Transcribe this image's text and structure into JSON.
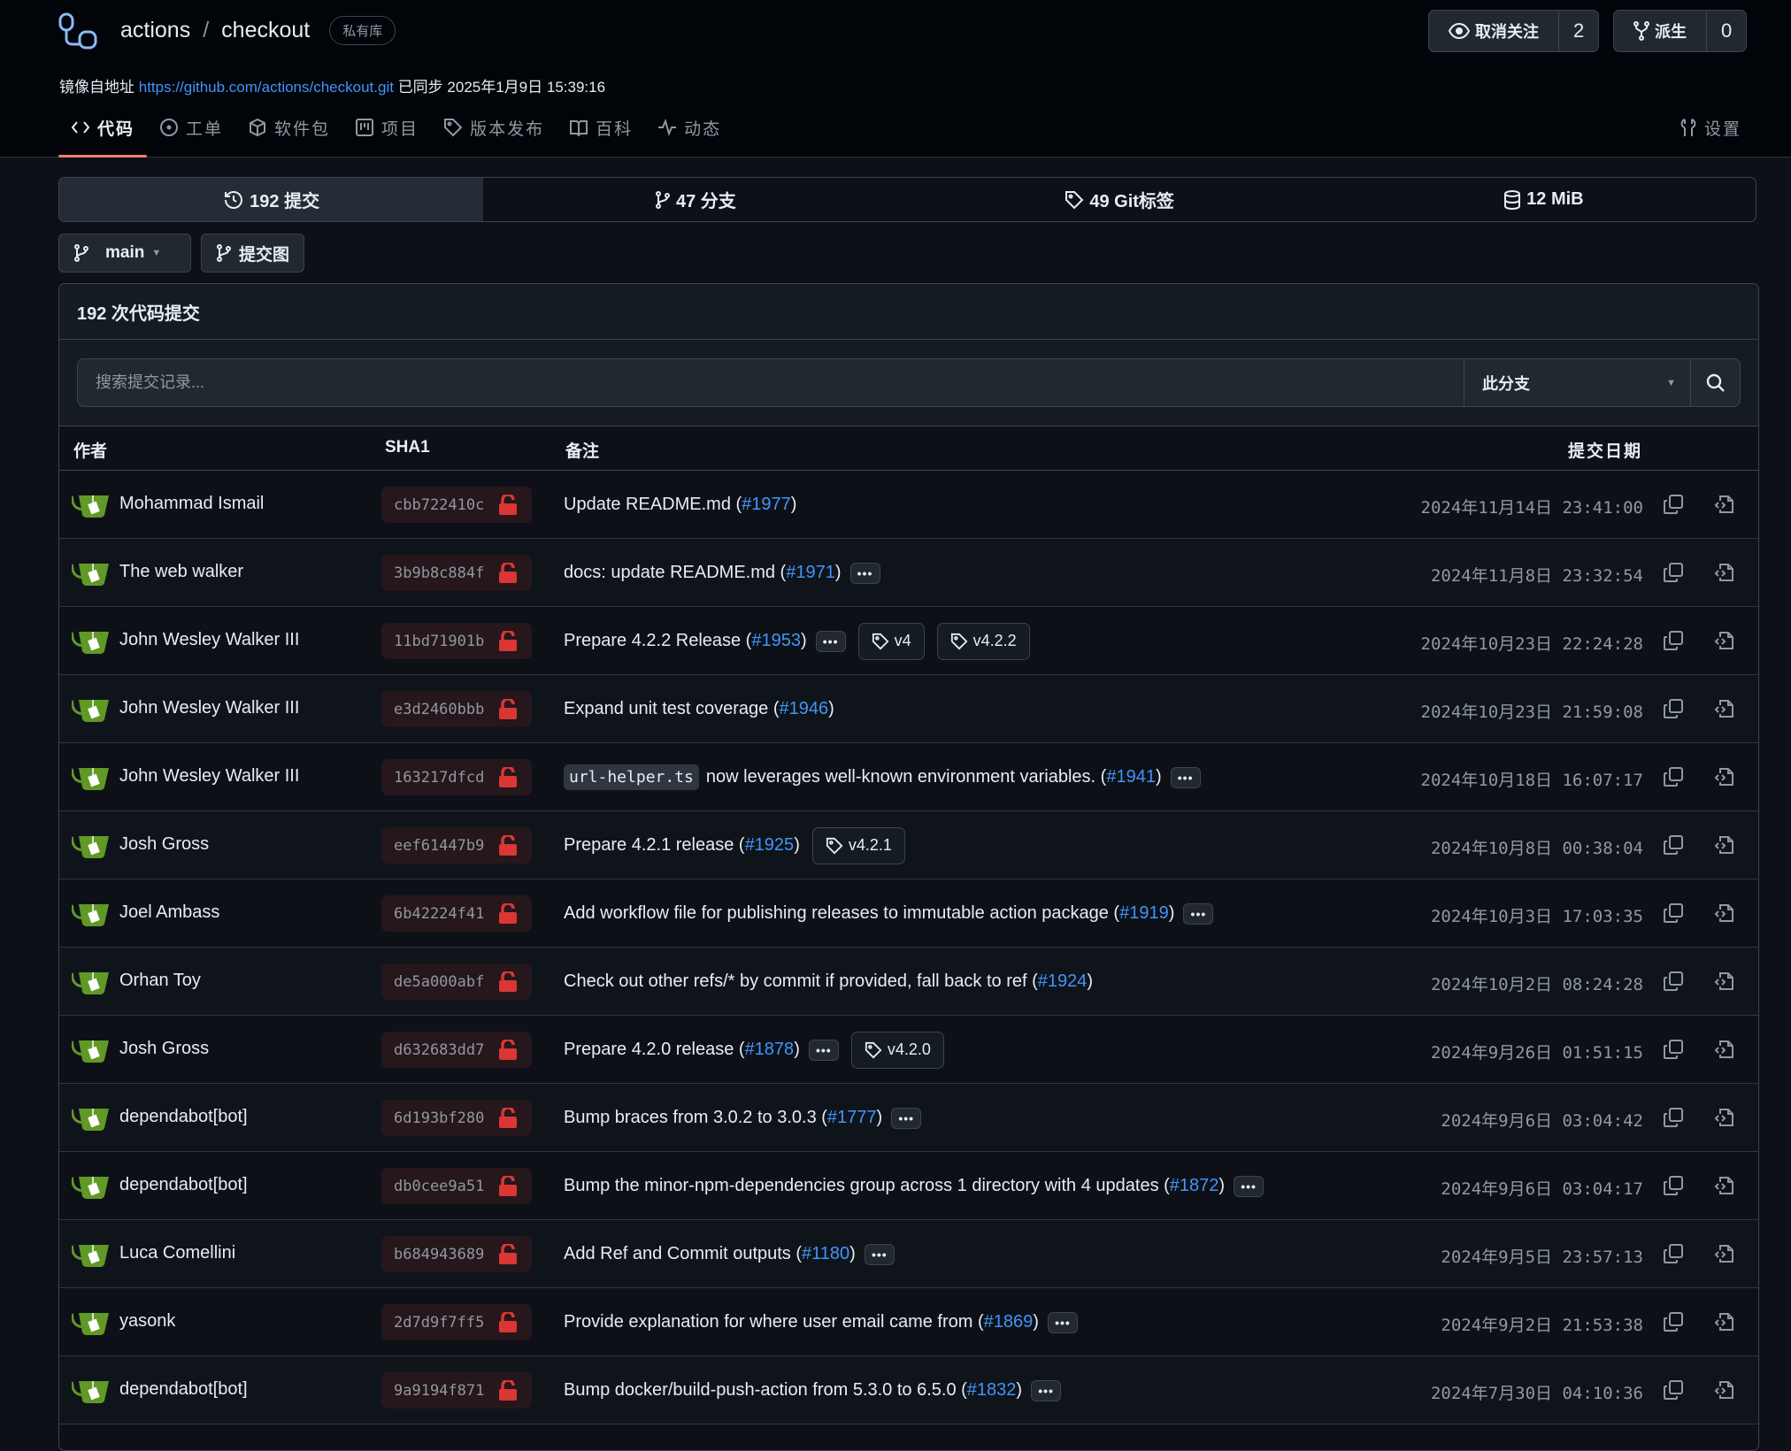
{
  "colors": {
    "accent": "#4493f8",
    "lock": "#da3633",
    "tab_underline": "#f78166",
    "avatar": "#609926"
  },
  "repo": {
    "owner": "actions",
    "separator": "/",
    "name": "checkout",
    "badge": "私有库"
  },
  "mirror": {
    "label": "镜像自地址",
    "url": "https://github.com/actions/checkout.git",
    "synced": "已同步 2025年1月9日 15:39:16"
  },
  "header_buttons": {
    "watch_label": "取消关注",
    "watch_count": "2",
    "fork_label": "派生",
    "fork_count": "0"
  },
  "nav": {
    "tabs": [
      {
        "label": "代码",
        "icon": "code-icon"
      },
      {
        "label": "工单",
        "icon": "issue-icon"
      },
      {
        "label": "软件包",
        "icon": "package-icon"
      },
      {
        "label": "项目",
        "icon": "project-icon"
      },
      {
        "label": "版本发布",
        "icon": "tag-icon"
      },
      {
        "label": "百科",
        "icon": "book-icon"
      },
      {
        "label": "动态",
        "icon": "pulse-icon"
      }
    ],
    "settings": "设置"
  },
  "stats": {
    "commits": "192 提交",
    "branches": "47 分支",
    "tags": "49 Git标签",
    "size": "12 MiB"
  },
  "branch": {
    "current": "main",
    "graph": "提交图"
  },
  "commits": {
    "heading": "192 次代码提交",
    "search_placeholder": "搜索提交记录...",
    "scope": "此分支",
    "columns": {
      "author": "作者",
      "sha": "SHA1",
      "message": "备注",
      "date": "提交日期"
    },
    "rows": [
      {
        "author": "Mohammad Ismail",
        "sha": "cbb722410c",
        "code": "",
        "msg": "Update README.md (",
        "pr": "#1977",
        "close": ")",
        "more": false,
        "tags": [],
        "date": "2024年11月14日 23:41:00"
      },
      {
        "author": "The web walker",
        "sha": "3b9b8c884f",
        "code": "",
        "msg": "docs: update README.md (",
        "pr": "#1971",
        "close": ")",
        "more": true,
        "tags": [],
        "date": "2024年11月8日 23:32:54"
      },
      {
        "author": "John Wesley Walker III",
        "sha": "11bd71901b",
        "code": "",
        "msg": "Prepare 4.2.2 Release (",
        "pr": "#1953",
        "close": ")",
        "more": true,
        "tags": [
          "v4",
          "v4.2.2"
        ],
        "date": "2024年10月23日 22:24:28"
      },
      {
        "author": "John Wesley Walker III",
        "sha": "e3d2460bbb",
        "code": "",
        "msg": "Expand unit test coverage (",
        "pr": "#1946",
        "close": ")",
        "more": false,
        "tags": [],
        "date": "2024年10月23日 21:59:08"
      },
      {
        "author": "John Wesley Walker III",
        "sha": "163217dfcd",
        "code": "url-helper.ts",
        "msg": "now leverages well-known environment variables. (",
        "pr": "#1941",
        "close": ")",
        "more": true,
        "tags": [],
        "date": "2024年10月18日 16:07:17"
      },
      {
        "author": "Josh Gross",
        "sha": "eef61447b9",
        "code": "",
        "msg": "Prepare 4.2.1 release (",
        "pr": "#1925",
        "close": ")",
        "more": false,
        "tags": [
          "v4.2.1"
        ],
        "date": "2024年10月8日 00:38:04"
      },
      {
        "author": "Joel Ambass",
        "sha": "6b42224f41",
        "code": "",
        "msg": "Add workflow file for publishing releases to immutable action package (",
        "pr": "#1919",
        "close": ")",
        "more": true,
        "tags": [],
        "date": "2024年10月3日 17:03:35"
      },
      {
        "author": "Orhan Toy",
        "sha": "de5a000abf",
        "code": "",
        "msg": "Check out other refs/* by commit if provided, fall back to ref (",
        "pr": "#1924",
        "close": ")",
        "more": false,
        "tags": [],
        "date": "2024年10月2日 08:24:28"
      },
      {
        "author": "Josh Gross",
        "sha": "d632683dd7",
        "code": "",
        "msg": "Prepare 4.2.0 release (",
        "pr": "#1878",
        "close": ")",
        "more": true,
        "tags": [
          "v4.2.0"
        ],
        "date": "2024年9月26日 01:51:15"
      },
      {
        "author": "dependabot[bot]",
        "sha": "6d193bf280",
        "code": "",
        "msg": "Bump braces from 3.0.2 to 3.0.3 (",
        "pr": "#1777",
        "close": ")",
        "more": true,
        "tags": [],
        "date": "2024年9月6日 03:04:42"
      },
      {
        "author": "dependabot[bot]",
        "sha": "db0cee9a51",
        "code": "",
        "msg": "Bump the minor-npm-dependencies group across 1 directory with 4 updates (",
        "pr": "#1872",
        "close": ")",
        "more": true,
        "tags": [],
        "date": "2024年9月6日 03:04:17"
      },
      {
        "author": "Luca Comellini",
        "sha": "b684943689",
        "code": "",
        "msg": "Add Ref and Commit outputs (",
        "pr": "#1180",
        "close": ")",
        "more": true,
        "tags": [],
        "date": "2024年9月5日 23:57:13"
      },
      {
        "author": "yasonk",
        "sha": "2d7d9f7ff5",
        "code": "",
        "msg": "Provide explanation for where user email came from (",
        "pr": "#1869",
        "close": ")",
        "more": true,
        "tags": [],
        "date": "2024年9月2日 21:53:38"
      },
      {
        "author": "dependabot[bot]",
        "sha": "9a9194f871",
        "code": "",
        "msg": "Bump docker/build-push-action from 5.3.0 to 6.5.0 (",
        "pr": "#1832",
        "close": ")",
        "more": true,
        "tags": [],
        "date": "2024年7月30日 04:10:36"
      }
    ]
  }
}
